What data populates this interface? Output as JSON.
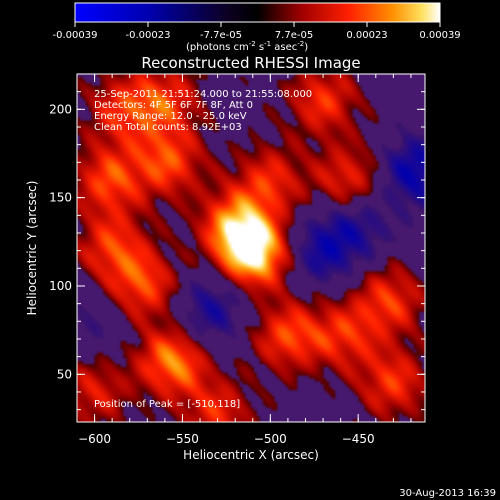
{
  "colorbar": {
    "tick_labels": [
      "-0.00039",
      "-0.00023",
      "-7.7e-05",
      "7.7e-05",
      "0.00023",
      "0.00039"
    ],
    "unit_label": "(photons cm",
    "unit_sup1": "-2",
    "unit_mid": " s",
    "unit_sup2": "-1",
    "unit_mid2": " asec",
    "unit_sup3": "-2",
    "unit_end": ")",
    "range": [
      -0.00039,
      0.00039
    ],
    "colors": [
      "#0000ff",
      "#000000",
      "#ff0000",
      "#ffffff"
    ]
  },
  "chart_data": {
    "type": "heatmap",
    "title": "Reconstructed RHESSI Image",
    "xlabel": "Heliocentric X (arcsec)",
    "ylabel": "Heliocentric Y (arcsec)",
    "xlim": [
      -610,
      -412
    ],
    "ylim": [
      23,
      220
    ],
    "x_ticks": [
      -600,
      -550,
      -500,
      -450
    ],
    "y_ticks": [
      50,
      100,
      150,
      200
    ],
    "x_tick_labels": [
      "−600",
      "−550",
      "−500",
      "−450"
    ],
    "y_tick_labels": [
      "50",
      "100",
      "150",
      "200"
    ],
    "annotations": [
      "25-Sep-2011 21:51:24.000 to 21:55:08.000",
      "Detectors: 4F 5F 6F 7F 8F, Att 0",
      "Energy Range: 12.0 - 25.0 keV",
      "Clean     Total counts: 8.92E+03"
    ],
    "peak_label": "Position of Peak = [-510,118]",
    "peak": [
      -510,
      118
    ],
    "blobs": [
      {
        "x": -510,
        "y": 118,
        "v": 1.0
      },
      {
        "x": -520,
        "y": 135,
        "v": 0.65
      },
      {
        "x": -555,
        "y": 58,
        "v": 0.75
      },
      {
        "x": -572,
        "y": 100,
        "v": 0.55
      },
      {
        "x": -590,
        "y": 122,
        "v": 0.5
      },
      {
        "x": -592,
        "y": 160,
        "v": 0.55
      },
      {
        "x": -558,
        "y": 170,
        "v": 0.55
      },
      {
        "x": -560,
        "y": 205,
        "v": 0.5
      },
      {
        "x": -500,
        "y": 160,
        "v": 0.45
      },
      {
        "x": -470,
        "y": 205,
        "v": 0.5
      },
      {
        "x": -455,
        "y": 160,
        "v": 0.5
      },
      {
        "x": -490,
        "y": 72,
        "v": 0.55
      },
      {
        "x": -458,
        "y": 72,
        "v": 0.45
      },
      {
        "x": -432,
        "y": 92,
        "v": 0.5
      },
      {
        "x": -600,
        "y": 40,
        "v": 0.4
      },
      {
        "x": -585,
        "y": 200,
        "v": 0.45
      },
      {
        "x": -430,
        "y": 45,
        "v": 0.5
      },
      {
        "x": -530,
        "y": 28,
        "v": 0.45
      },
      {
        "x": -470,
        "y": 120,
        "v": -0.45
      },
      {
        "x": -418,
        "y": 165,
        "v": -0.55
      },
      {
        "x": -540,
        "y": 80,
        "v": -0.3
      },
      {
        "x": -450,
        "y": 135,
        "v": -0.35
      },
      {
        "x": -527,
        "y": 95,
        "v": -0.25
      },
      {
        "x": -600,
        "y": 80,
        "v": -0.2
      }
    ]
  },
  "footer": {
    "date": "30-Aug-2013 16:39"
  }
}
